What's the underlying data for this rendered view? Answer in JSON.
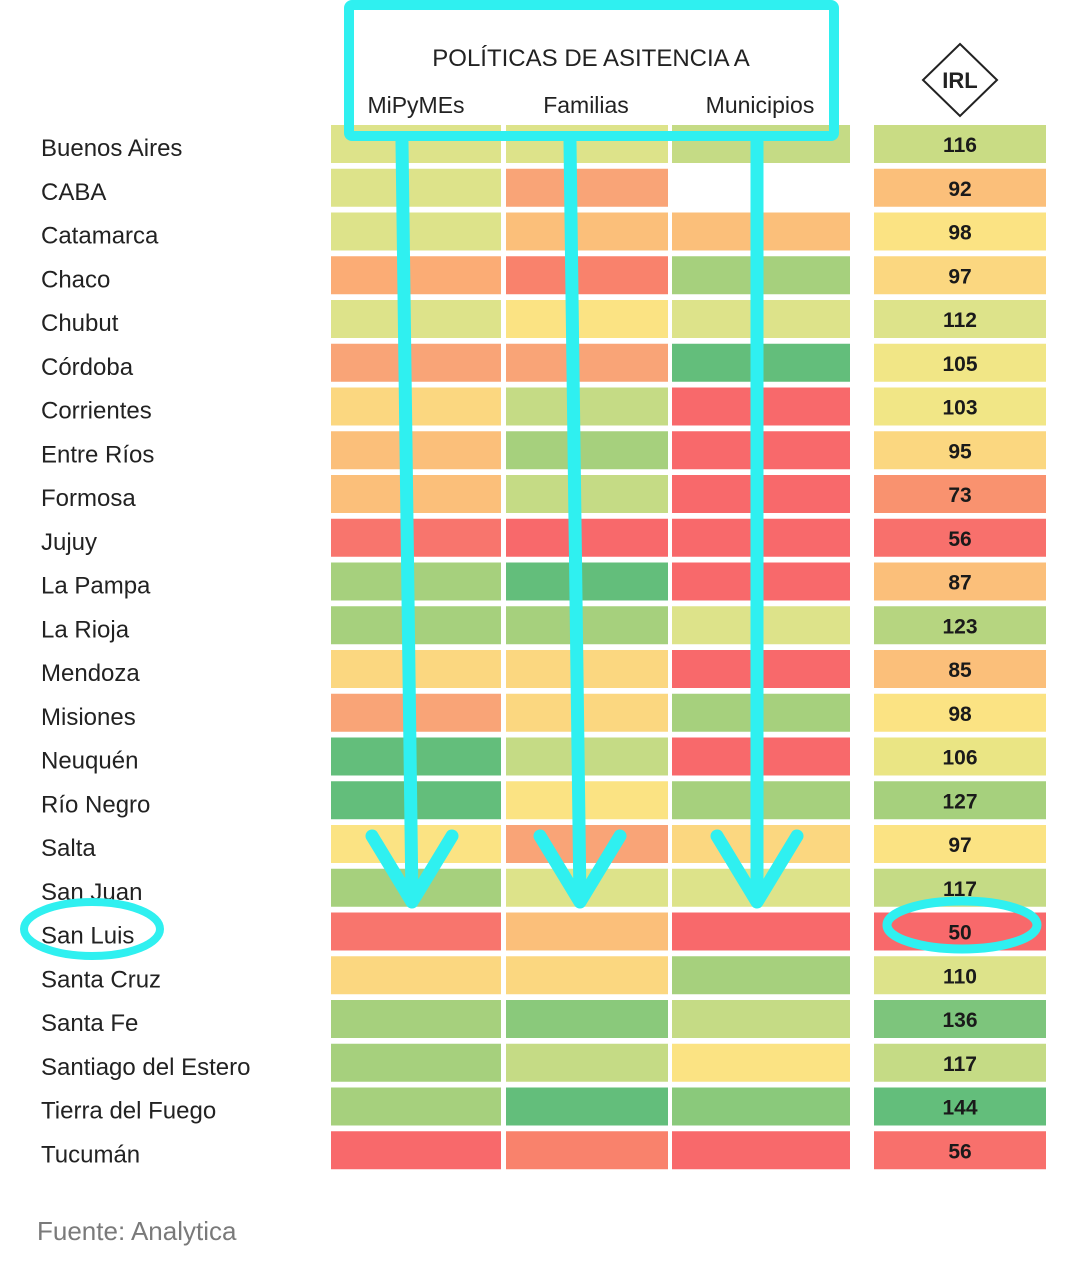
{
  "chart_data": {
    "type": "heatmap",
    "title": "POLÍTICAS DE ASITENCIA A",
    "columns": [
      "MiPyMEs",
      "Familias",
      "Municipios"
    ],
    "index_label": "IRL",
    "rows": [
      {
        "province": "Buenos Aires",
        "colors": [
          "#dde38a",
          "#dde38a",
          "#c5db85"
        ],
        "irl": 116,
        "irl_color": "#c9dc84"
      },
      {
        "province": "CABA",
        "colors": [
          "#dde38a",
          "#f9a477",
          null
        ],
        "irl": 92,
        "irl_color": "#fbbf7a"
      },
      {
        "province": "Catamarca",
        "colors": [
          "#dde38a",
          "#fbbf7a",
          "#fbbf7a"
        ],
        "irl": 98,
        "irl_color": "#fbe383"
      },
      {
        "province": "Chaco",
        "colors": [
          "#fbac75",
          "#f9826c",
          "#a6d07d"
        ],
        "irl": 97,
        "irl_color": "#fbd780"
      },
      {
        "province": "Chubut",
        "colors": [
          "#dde38a",
          "#fbe383",
          "#dde38a"
        ],
        "irl": 112,
        "irl_color": "#dde38a"
      },
      {
        "province": "Córdoba",
        "colors": [
          "#f9a477",
          "#f9a477",
          "#63be7b"
        ],
        "irl": 105,
        "irl_color": "#f1e686"
      },
      {
        "province": "Corrientes",
        "colors": [
          "#fbd780",
          "#c5db85",
          "#f8696b"
        ],
        "irl": 103,
        "irl_color": "#f1e686"
      },
      {
        "province": "Entre Ríos",
        "colors": [
          "#fbbf7a",
          "#a6d07d",
          "#f8696b"
        ],
        "irl": 95,
        "irl_color": "#fbd780"
      },
      {
        "province": "Formosa",
        "colors": [
          "#fbbf7a",
          "#c5db85",
          "#f8696b"
        ],
        "irl": 73,
        "irl_color": "#f9926f"
      },
      {
        "province": "Jujuy",
        "colors": [
          "#f8756d",
          "#f8696b",
          "#f8696b"
        ],
        "irl": 56,
        "irl_color": "#f8706c"
      },
      {
        "province": "La Pampa",
        "colors": [
          "#a6d07d",
          "#63be7b",
          "#f8696b"
        ],
        "irl": 87,
        "irl_color": "#fbbf7a"
      },
      {
        "province": "La Rioja",
        "colors": [
          "#a6d07d",
          "#a6d07d",
          "#dde38a"
        ],
        "irl": 123,
        "irl_color": "#b6d580"
      },
      {
        "province": "Mendoza",
        "colors": [
          "#fbd780",
          "#fbd780",
          "#f8696b"
        ],
        "irl": 85,
        "irl_color": "#fbbf7a"
      },
      {
        "province": "Misiones",
        "colors": [
          "#f9a477",
          "#fbd780",
          "#a6d07d"
        ],
        "irl": 98,
        "irl_color": "#fbe383"
      },
      {
        "province": "Neuquén",
        "colors": [
          "#63be7b",
          "#c5db85",
          "#f8696b"
        ],
        "irl": 106,
        "irl_color": "#eae584"
      },
      {
        "province": "Río Negro",
        "colors": [
          "#63be7b",
          "#fbe383",
          "#a6d07d"
        ],
        "irl": 127,
        "irl_color": "#a6d07d"
      },
      {
        "province": "Salta",
        "colors": [
          "#fbe383",
          "#f9a477",
          "#fbd780"
        ],
        "irl": 97,
        "irl_color": "#fbe383"
      },
      {
        "province": "San Juan",
        "colors": [
          "#a6d07d",
          "#dde38a",
          "#dde38a"
        ],
        "irl": 117,
        "irl_color": "#c5db85"
      },
      {
        "province": "San Luis",
        "colors": [
          "#f8756d",
          "#fbbf7a",
          "#f8696b"
        ],
        "irl": 50,
        "irl_color": "#f8696b"
      },
      {
        "province": "Santa Cruz",
        "colors": [
          "#fbd780",
          "#fbd780",
          "#a6d07d"
        ],
        "irl": 110,
        "irl_color": "#dde38a"
      },
      {
        "province": "Santa Fe",
        "colors": [
          "#a6d07d",
          "#8ac97b",
          "#c5db85"
        ],
        "irl": 136,
        "irl_color": "#7dc57c"
      },
      {
        "province": "Santiago del Estero",
        "colors": [
          "#a6d07d",
          "#c5db85",
          "#fbe383"
        ],
        "irl": 117,
        "irl_color": "#c5db85"
      },
      {
        "province": "Tierra del Fuego",
        "colors": [
          "#a6d07d",
          "#63be7b",
          "#8ac97b"
        ],
        "irl": 144,
        "irl_color": "#63be7b"
      },
      {
        "province": "Tucumán",
        "colors": [
          "#f8696b",
          "#f9826c",
          "#f8696b"
        ],
        "irl": 56,
        "irl_color": "#f8706c"
      }
    ],
    "highlight": {
      "province": "San Luis",
      "annotation_color": "#2ff0f0"
    }
  },
  "footer": {
    "source": "Fuente: Analytica"
  }
}
